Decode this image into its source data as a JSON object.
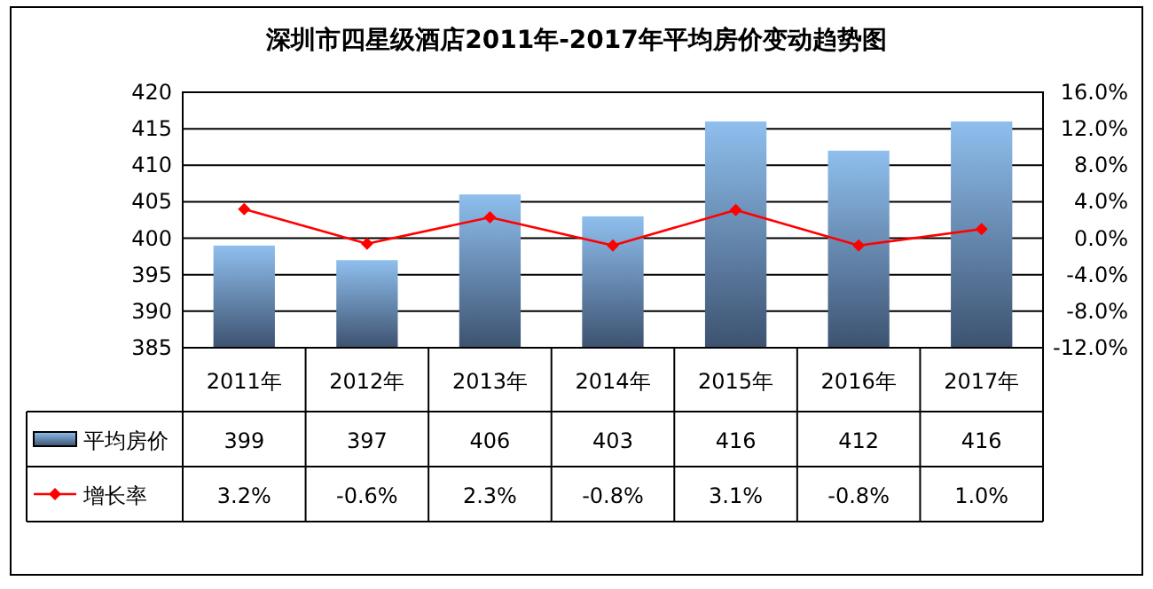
{
  "chart_data": {
    "type": "bar",
    "title": "深圳市四星级酒店2011年-2017年平均房价变动趋势图",
    "categories": [
      "2011年",
      "2012年",
      "2013年",
      "2014年",
      "2015年",
      "2016年",
      "2017年"
    ],
    "series": [
      {
        "name": "平均房价",
        "color": "#8fbfee",
        "values": [
          399,
          397,
          406,
          403,
          416,
          412,
          416
        ]
      },
      {
        "name": "增长率",
        "type": "line",
        "axis": "y2",
        "color": "#ff0000",
        "marker": "diamond",
        "values": [
          3.2,
          -0.6,
          2.3,
          -0.8,
          3.1,
          -0.8,
          1.0
        ],
        "value_labels": [
          "3.2%",
          "-0.6%",
          "2.3%",
          "-0.8%",
          "3.1%",
          "-0.8%",
          "1.0%"
        ]
      }
    ],
    "ylim": [
      385,
      420
    ],
    "yticks": [
      385,
      390,
      395,
      400,
      405,
      410,
      415,
      420
    ],
    "y2lim": [
      -12,
      16
    ],
    "y2ticks": [
      {
        "value": -12,
        "label": "-12.0%"
      },
      {
        "value": -8,
        "label": "-8.0%"
      },
      {
        "value": -4,
        "label": "-4.0%"
      },
      {
        "value": 0,
        "label": "0.0%"
      },
      {
        "value": 4,
        "label": "4.0%"
      },
      {
        "value": 8,
        "label": "8.0%"
      },
      {
        "value": 12,
        "label": "12.0%"
      },
      {
        "value": 16,
        "label": "16.0%"
      }
    ],
    "grid": "y",
    "legend": "bottom",
    "data_labels": true
  }
}
